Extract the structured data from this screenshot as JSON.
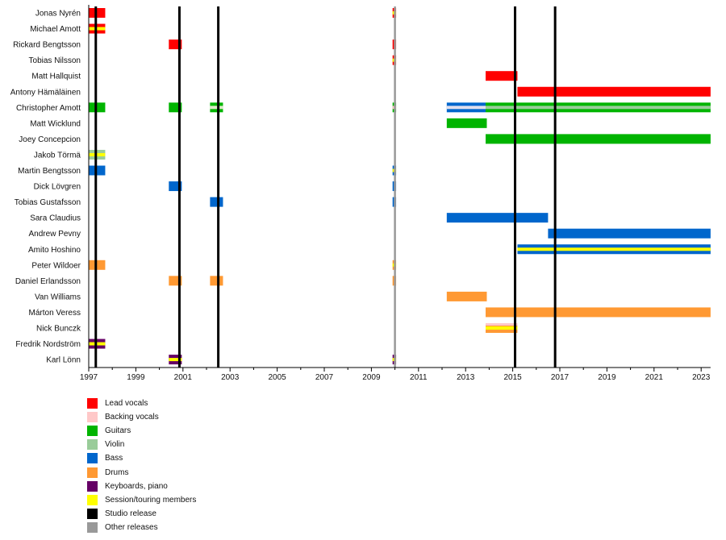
{
  "chart_data": {
    "type": "timeline",
    "title": "",
    "xlabel": "",
    "ylabel": "",
    "xlim": [
      1997.0,
      2023.4
    ],
    "x_ticks": [
      1997,
      1999,
      2001,
      2003,
      2005,
      2007,
      2009,
      2011,
      2013,
      2015,
      2017,
      2019,
      2021,
      2023
    ],
    "colors": {
      "lead_vocals": "#ff0000",
      "backing_vocals": "#ffc8c8",
      "guitars": "#00b400",
      "violin": "#99cc99",
      "bass": "#0066cc",
      "drums": "#ff9933",
      "keyboards": "#660066",
      "session": "#ffff00",
      "studio": "#000000",
      "other": "#999999"
    },
    "members": [
      "Jonas Nyrén",
      "Michael Amott",
      "Rickard Bengtsson",
      "Tobias Nilsson",
      "Matt Hallquist",
      "Antony Hämäläinen",
      "Christopher Amott",
      "Matt Wicklund",
      "Joey Concepcion",
      "Jakob Törmä",
      "Martin Bengtsson",
      "Dick Lövgren",
      "Tobias Gustafsson",
      "Sara Claudius",
      "Andrew Pevny",
      "Amito Hoshino",
      "Peter Wildoer",
      "Daniel Erlandsson",
      "Van Williams",
      "Márton Veress",
      "Nick Bunczk",
      "Fredrik Nordström",
      "Karl Lönn"
    ],
    "bars": [
      {
        "member": 0,
        "start": 1997.0,
        "end": 1997.7,
        "role": "lead_vocals"
      },
      {
        "member": 1,
        "start": 1997.0,
        "end": 1997.7,
        "role": "lead_vocals",
        "stripe": "session"
      },
      {
        "member": 2,
        "start": 2000.4,
        "end": 2000.95,
        "role": "lead_vocals"
      },
      {
        "member": 4,
        "start": 2013.85,
        "end": 2015.2,
        "role": "lead_vocals"
      },
      {
        "member": 5,
        "start": 2015.2,
        "end": 2023.4,
        "role": "lead_vocals"
      },
      {
        "member": 6,
        "start": 1997.0,
        "end": 1997.7,
        "role": "guitars"
      },
      {
        "member": 6,
        "start": 2000.4,
        "end": 2000.95,
        "role": "guitars"
      },
      {
        "member": 6,
        "start": 2002.15,
        "end": 2002.7,
        "role": "guitars",
        "stripe": "backing_vocals_violin"
      },
      {
        "member": 6,
        "start": 2012.2,
        "end": 2013.85,
        "role": "bass",
        "stripe": "backing_vocals"
      },
      {
        "member": 6,
        "start": 2013.85,
        "end": 2023.4,
        "role": "guitars",
        "stripe": "violin"
      },
      {
        "member": 7,
        "start": 2012.2,
        "end": 2013.9,
        "role": "guitars"
      },
      {
        "member": 8,
        "start": 2013.85,
        "end": 2023.4,
        "role": "guitars"
      },
      {
        "member": 9,
        "start": 1997.0,
        "end": 1997.7,
        "role": "violin",
        "stripe": "session"
      },
      {
        "member": 10,
        "start": 1997.0,
        "end": 1997.7,
        "role": "bass"
      },
      {
        "member": 11,
        "start": 2000.4,
        "end": 2000.95,
        "role": "bass"
      },
      {
        "member": 12,
        "start": 2002.15,
        "end": 2002.7,
        "role": "bass"
      },
      {
        "member": 13,
        "start": 2012.2,
        "end": 2016.5,
        "role": "bass"
      },
      {
        "member": 14,
        "start": 2016.5,
        "end": 2023.4,
        "role": "bass"
      },
      {
        "member": 15,
        "start": 2015.2,
        "end": 2023.4,
        "role": "bass",
        "stripe": "session"
      },
      {
        "member": 16,
        "start": 1997.0,
        "end": 1997.7,
        "role": "drums"
      },
      {
        "member": 17,
        "start": 2000.4,
        "end": 2000.95,
        "role": "drums"
      },
      {
        "member": 17,
        "start": 2002.15,
        "end": 2002.7,
        "role": "drums"
      },
      {
        "member": 18,
        "start": 2012.2,
        "end": 2013.9,
        "role": "drums"
      },
      {
        "member": 19,
        "start": 2013.85,
        "end": 2023.4,
        "role": "drums"
      },
      {
        "member": 20,
        "start": 2013.85,
        "end": 2015.2,
        "role": "drums",
        "stripe": "session",
        "top": "backing_vocals"
      },
      {
        "member": 21,
        "start": 1997.0,
        "end": 1997.7,
        "role": "keyboards",
        "stripe": "session"
      },
      {
        "member": 22,
        "start": 2000.4,
        "end": 2000.95,
        "role": "keyboards",
        "stripe": "session"
      },
      {
        "member": 0,
        "start": 2009.9,
        "end": 2010.05,
        "role": "lead_vocals",
        "stripe": "session"
      },
      {
        "member": 2,
        "start": 2009.9,
        "end": 2010.05,
        "role": "lead_vocals"
      },
      {
        "member": 3,
        "start": 2009.9,
        "end": 2010.05,
        "role": "lead_vocals",
        "stripe": "session"
      },
      {
        "member": 6,
        "start": 2009.9,
        "end": 2010.05,
        "role": "guitars",
        "stripe": "backing_vocals"
      },
      {
        "member": 10,
        "start": 2009.9,
        "end": 2010.05,
        "role": "bass",
        "stripe": "session"
      },
      {
        "member": 11,
        "start": 2009.9,
        "end": 2010.05,
        "role": "bass"
      },
      {
        "member": 12,
        "start": 2009.9,
        "end": 2010.05,
        "role": "bass"
      },
      {
        "member": 16,
        "start": 2009.9,
        "end": 2010.05,
        "role": "drums",
        "stripe": "session"
      },
      {
        "member": 17,
        "start": 2009.9,
        "end": 2010.05,
        "role": "drums"
      },
      {
        "member": 22,
        "start": 2009.9,
        "end": 2010.05,
        "role": "keyboards",
        "stripe": "session"
      }
    ],
    "studio_releases": [
      1997.3,
      2000.85,
      2002.5,
      2015.1,
      2016.8
    ],
    "other_releases": [
      2010.0
    ],
    "legend": [
      {
        "label": "Lead vocals",
        "color": "#ff0000"
      },
      {
        "label": "Backing vocals",
        "color": "#ffc8c8"
      },
      {
        "label": "Guitars",
        "color": "#00b400"
      },
      {
        "label": "Violin",
        "color": "#99cc99"
      },
      {
        "label": "Bass",
        "color": "#0066cc"
      },
      {
        "label": "Drums",
        "color": "#ff9933"
      },
      {
        "label": "Keyboards, piano",
        "color": "#660066"
      },
      {
        "label": "Session/touring members",
        "color": "#ffff00"
      },
      {
        "label": "Studio release",
        "color": "#000000"
      },
      {
        "label": "Other releases",
        "color": "#999999"
      }
    ],
    "legend_placement": "bottom-left"
  }
}
